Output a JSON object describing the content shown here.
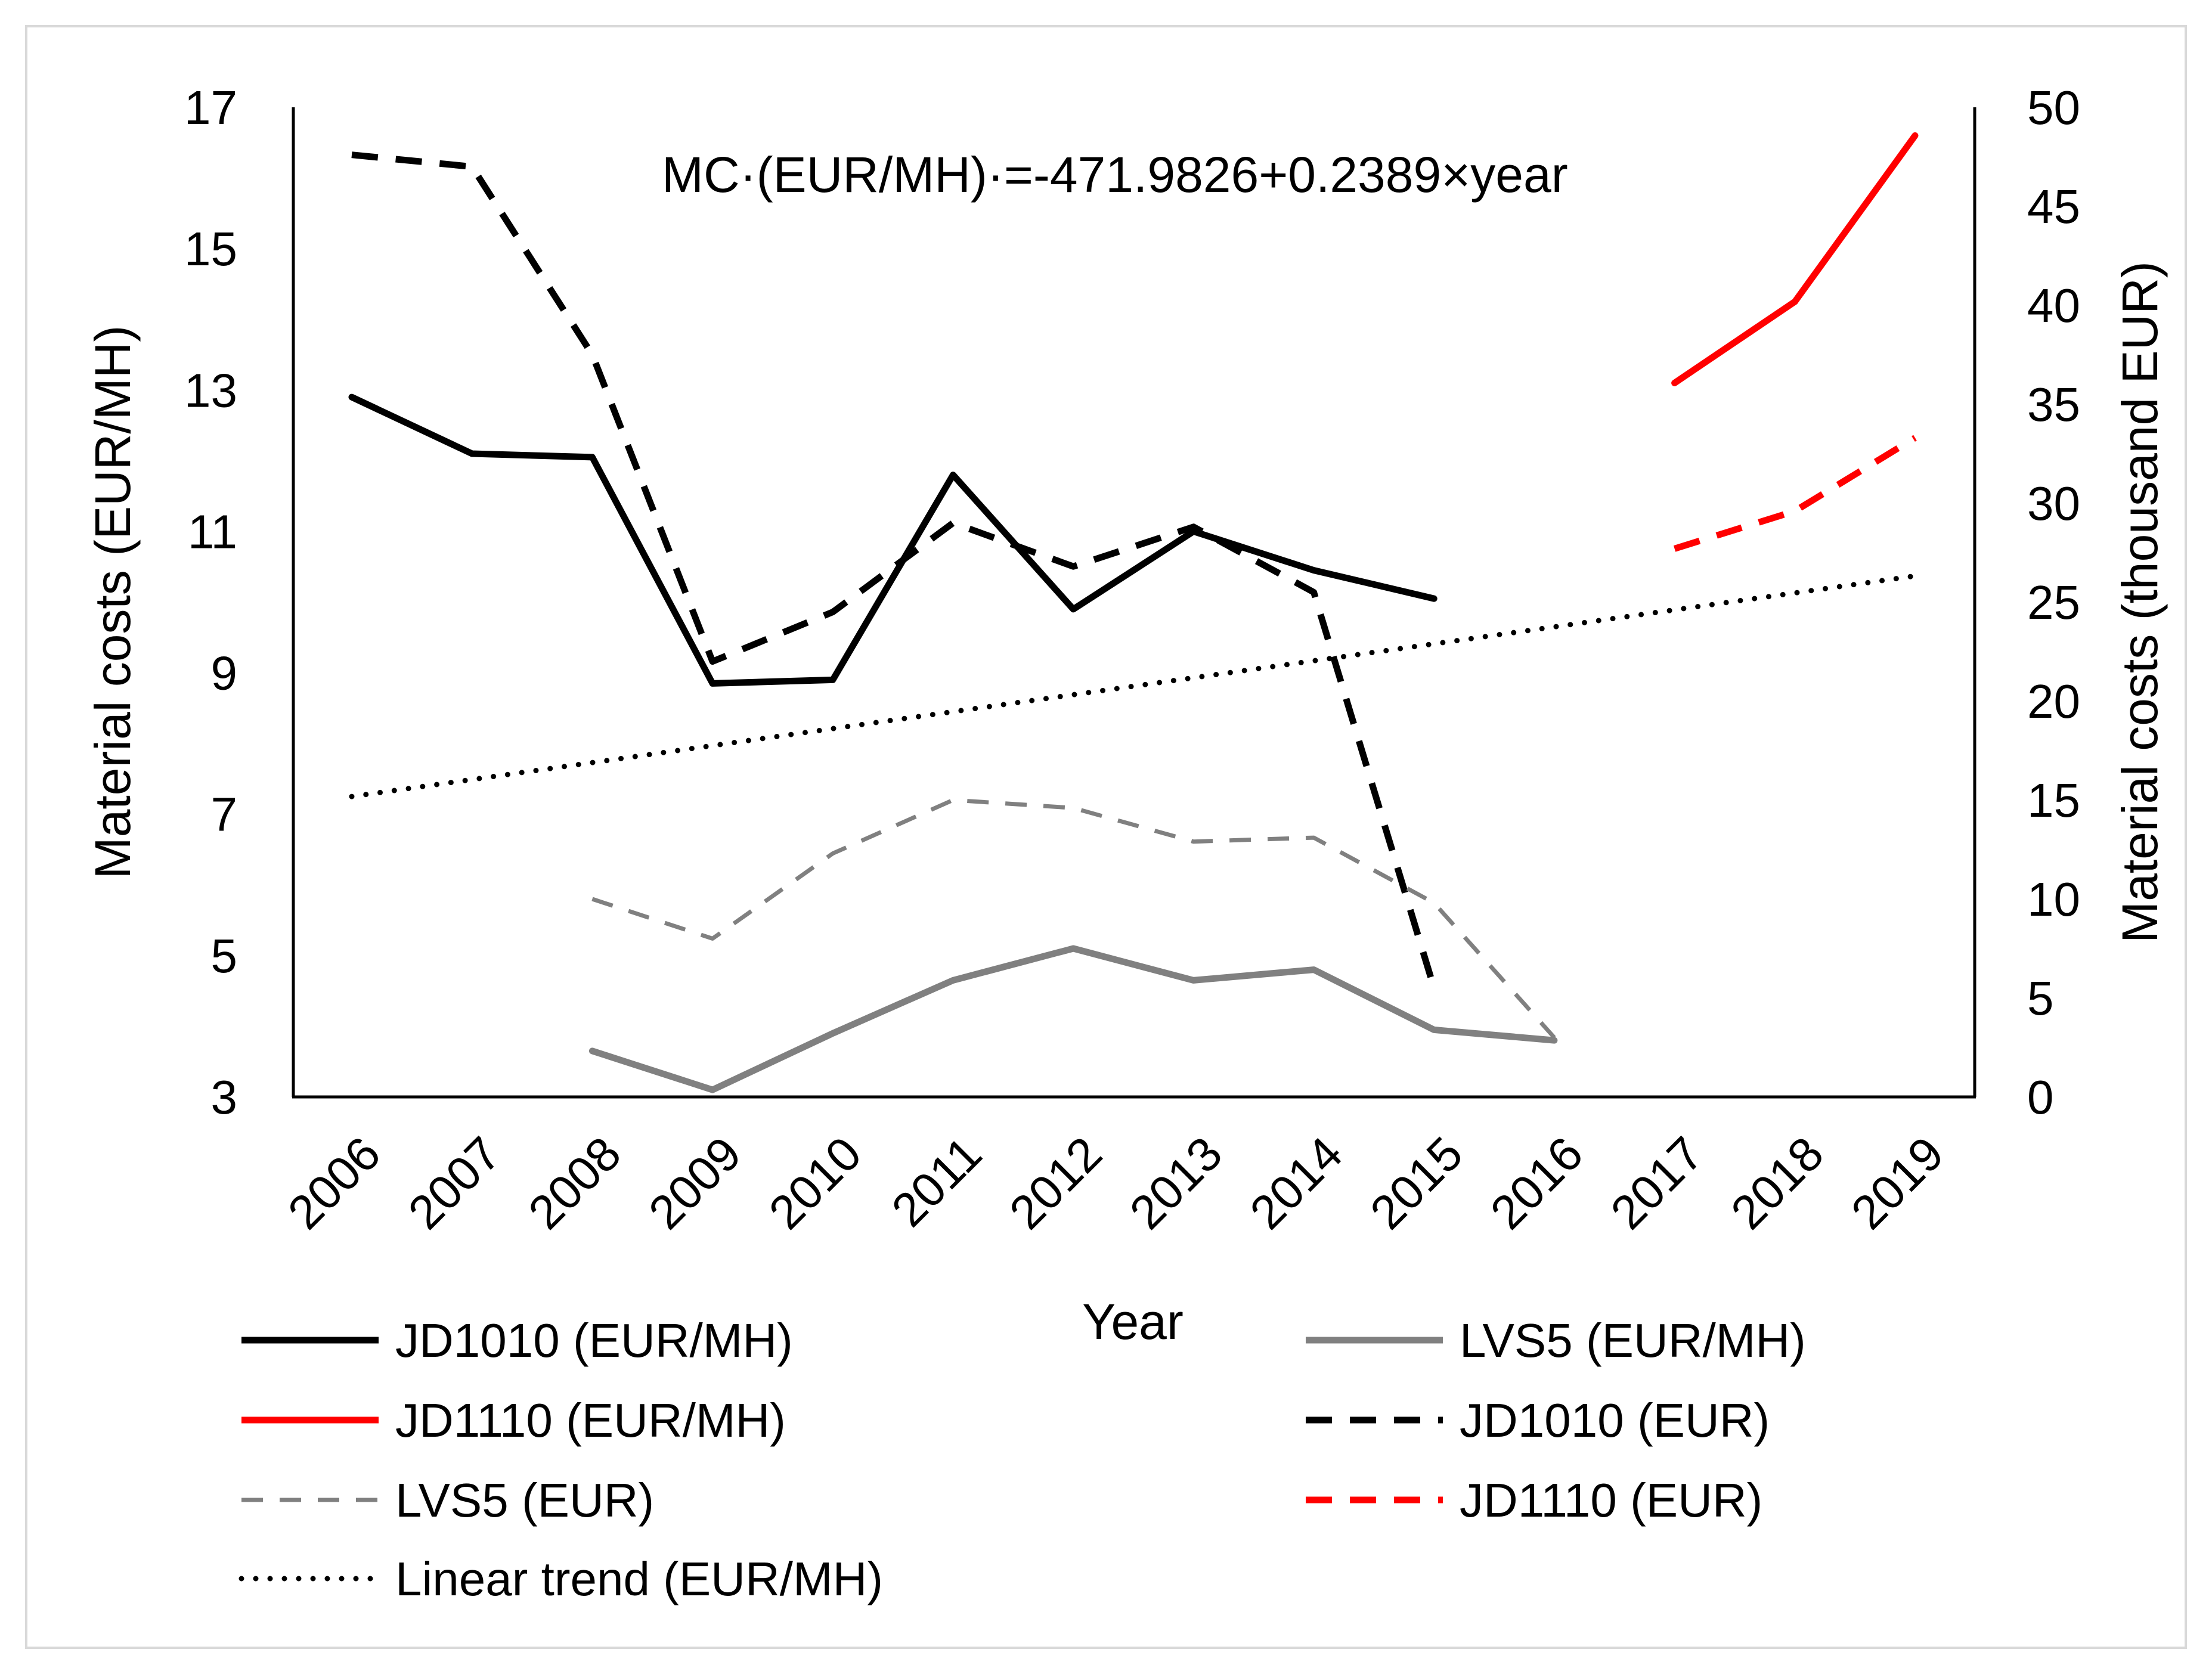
{
  "chart_data": {
    "type": "line",
    "title": "",
    "annotation": "MC·(EUR/MH)·=-471.9826+0.2389×year",
    "xlabel": "Year",
    "ylabel_left": "Material costs (EUR/MH)",
    "ylabel_right": "Material costs (thousand EUR)",
    "categories": [
      "2006",
      "2007",
      "2008",
      "2009",
      "2010",
      "2011",
      "2012",
      "2013",
      "2014",
      "2015",
      "2016",
      "2017",
      "2018",
      "2019"
    ],
    "y_left": {
      "min": 3,
      "max": 17,
      "ticks": [
        3,
        5,
        7,
        9,
        11,
        13,
        15,
        17
      ]
    },
    "y_right": {
      "min": 0,
      "max": 50,
      "ticks": [
        0,
        5,
        10,
        15,
        20,
        25,
        30,
        35,
        40,
        45,
        50
      ]
    },
    "grid": false,
    "legend_position": "bottom",
    "series": [
      {
        "name": "JD1010 (EUR/MH)",
        "axis": "left",
        "color": "#000000",
        "style": "solid",
        "width": 11,
        "values": [
          12.9,
          12.1,
          12.05,
          8.85,
          8.9,
          11.8,
          9.9,
          11.0,
          10.45,
          10.05,
          null,
          null,
          null,
          null
        ]
      },
      {
        "name": "LVS5 (EUR/MH)",
        "axis": "left",
        "color": "#808080",
        "style": "solid",
        "width": 11,
        "values": [
          null,
          null,
          3.65,
          3.1,
          3.9,
          4.65,
          5.1,
          4.65,
          4.8,
          3.95,
          3.8,
          null,
          null,
          null
        ]
      },
      {
        "name": "JD1110 (EUR/MH)",
        "axis": "left",
        "color": "#ff0000",
        "style": "solid",
        "width": 11,
        "values": [
          null,
          null,
          null,
          null,
          null,
          null,
          null,
          null,
          null,
          null,
          null,
          13.1,
          14.25,
          16.6
        ]
      },
      {
        "name": "JD1010 (EUR)",
        "axis": "right",
        "color": "#000000",
        "style": "dash",
        "width": 11,
        "values": [
          47.6,
          47.0,
          37.5,
          22.0,
          24.5,
          29.0,
          26.8,
          28.8,
          25.5,
          5.5,
          null,
          null,
          null,
          null
        ]
      },
      {
        "name": "LVS5 (EUR)",
        "axis": "right",
        "color": "#808080",
        "style": "dash-thin",
        "width": 7,
        "values": [
          null,
          null,
          10.0,
          8.0,
          12.3,
          15.0,
          14.6,
          12.9,
          13.1,
          9.8,
          3.0,
          null,
          null,
          null
        ]
      },
      {
        "name": "JD1110 (EUR)",
        "axis": "right",
        "color": "#ff0000",
        "style": "dash",
        "width": 11,
        "values": [
          null,
          null,
          null,
          null,
          null,
          null,
          null,
          null,
          null,
          null,
          null,
          27.7,
          29.6,
          33.3
        ]
      },
      {
        "name": "Linear trend (EUR/MH)",
        "axis": "left",
        "color": "#000000",
        "style": "dot",
        "width": 9,
        "values": [
          7.25,
          7.49,
          7.73,
          7.97,
          8.21,
          8.45,
          8.69,
          8.93,
          9.17,
          9.41,
          9.65,
          9.89,
          10.13,
          10.37
        ]
      }
    ],
    "legend": [
      {
        "series": 0
      },
      {
        "series": 1
      },
      {
        "series": 2
      },
      {
        "series": 3
      },
      {
        "series": 4
      },
      {
        "series": 5
      },
      {
        "series": 6
      }
    ]
  }
}
